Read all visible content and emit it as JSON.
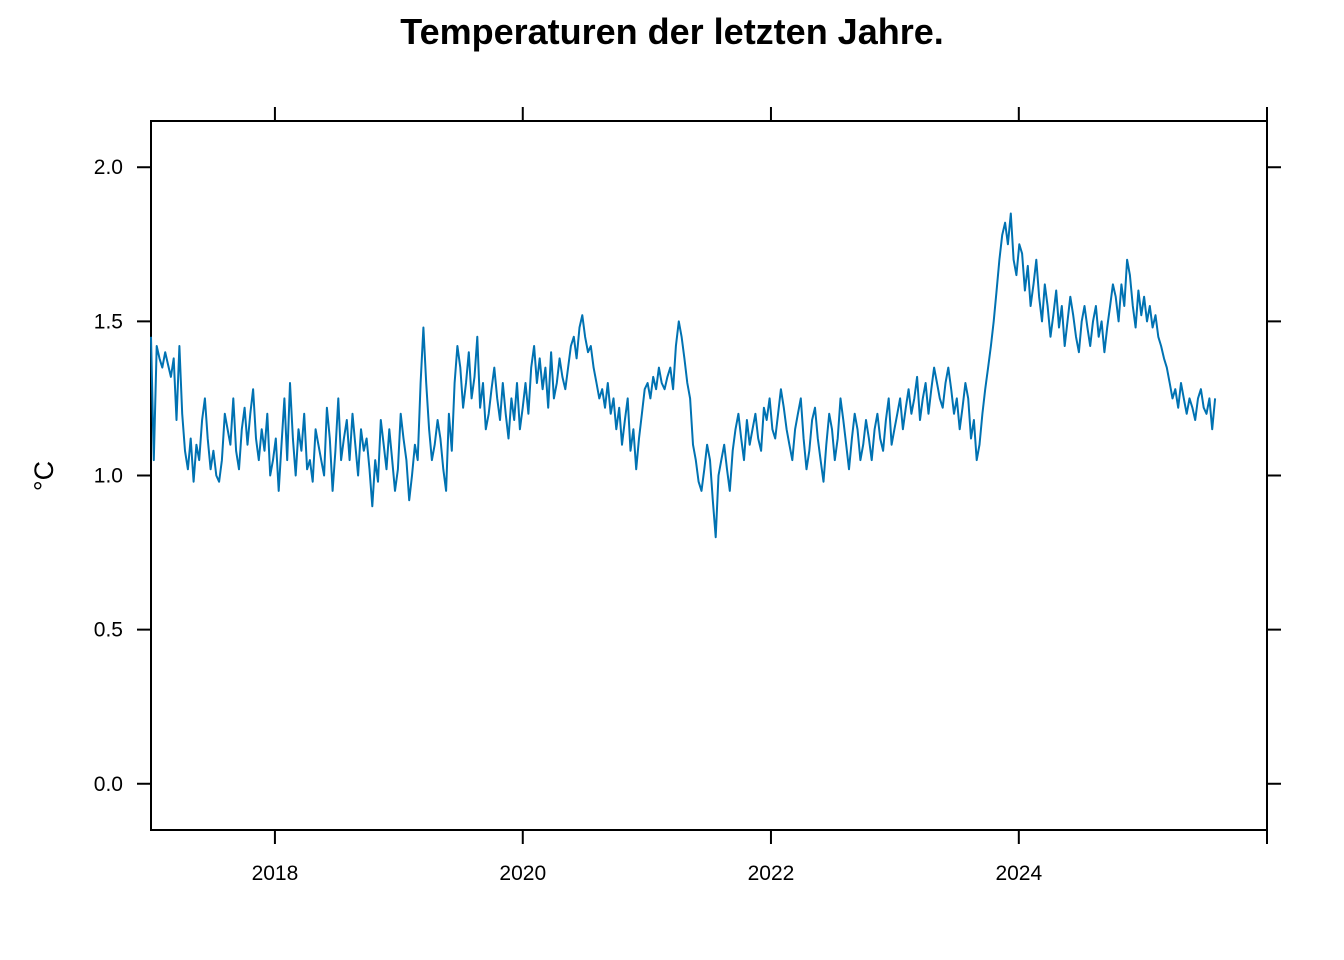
{
  "chart_data": {
    "type": "line",
    "title": "Temperaturen der letzten Jahre.",
    "xlabel": "",
    "ylabel": "°C",
    "x_start": "2017-01-01",
    "x_end": "2025-08-01",
    "xlim": [
      "2017-01-01",
      "2026-01-01"
    ],
    "ylim": [
      -0.15,
      2.15
    ],
    "x_ticks": [
      {
        "value": "2018-01-01",
        "label": "2018"
      },
      {
        "value": "2020-01-01",
        "label": "2020"
      },
      {
        "value": "2022-01-01",
        "label": "2022"
      },
      {
        "value": "2024-01-01",
        "label": "2024"
      }
    ],
    "x_top_ticks": [
      "2018-01-01",
      "2020-01-01",
      "2022-01-01",
      "2024-01-01",
      "2026-01-01"
    ],
    "y_ticks": [
      {
        "value": 0.0,
        "label": "0.0"
      },
      {
        "value": 0.5,
        "label": "0.5"
      },
      {
        "value": 1.0,
        "label": "1.0"
      },
      {
        "value": 1.5,
        "label": "1.5"
      },
      {
        "value": 2.0,
        "label": "2.0"
      }
    ],
    "grid": false,
    "series": [
      {
        "color": "#0072b2",
        "values": [
          1.45,
          1.05,
          1.42,
          1.38,
          1.35,
          1.4,
          1.36,
          1.32,
          1.38,
          1.18,
          1.42,
          1.2,
          1.08,
          1.02,
          1.12,
          0.98,
          1.1,
          1.05,
          1.18,
          1.25,
          1.12,
          1.02,
          1.08,
          1.0,
          0.98,
          1.05,
          1.2,
          1.15,
          1.1,
          1.25,
          1.08,
          1.02,
          1.15,
          1.22,
          1.1,
          1.2,
          1.28,
          1.12,
          1.05,
          1.15,
          1.08,
          1.2,
          1.0,
          1.05,
          1.12,
          0.95,
          1.1,
          1.25,
          1.05,
          1.3,
          1.12,
          1.0,
          1.15,
          1.08,
          1.2,
          1.02,
          1.05,
          0.98,
          1.15,
          1.1,
          1.05,
          1.0,
          1.22,
          1.12,
          0.95,
          1.08,
          1.25,
          1.05,
          1.12,
          1.18,
          1.05,
          1.2,
          1.1,
          1.0,
          1.15,
          1.08,
          1.12,
          1.02,
          0.9,
          1.05,
          0.98,
          1.18,
          1.1,
          1.02,
          1.15,
          1.05,
          0.95,
          1.02,
          1.2,
          1.12,
          1.05,
          0.92,
          1.0,
          1.1,
          1.05,
          1.3,
          1.48,
          1.3,
          1.15,
          1.05,
          1.1,
          1.18,
          1.12,
          1.02,
          0.95,
          1.2,
          1.08,
          1.3,
          1.42,
          1.35,
          1.22,
          1.3,
          1.4,
          1.25,
          1.32,
          1.45,
          1.22,
          1.3,
          1.15,
          1.2,
          1.28,
          1.35,
          1.25,
          1.18,
          1.3,
          1.2,
          1.12,
          1.25,
          1.18,
          1.3,
          1.15,
          1.22,
          1.3,
          1.2,
          1.35,
          1.42,
          1.3,
          1.38,
          1.28,
          1.35,
          1.22,
          1.4,
          1.25,
          1.3,
          1.38,
          1.32,
          1.28,
          1.35,
          1.42,
          1.45,
          1.38,
          1.48,
          1.52,
          1.45,
          1.4,
          1.42,
          1.35,
          1.3,
          1.25,
          1.28,
          1.22,
          1.3,
          1.2,
          1.25,
          1.15,
          1.22,
          1.1,
          1.18,
          1.25,
          1.08,
          1.15,
          1.02,
          1.12,
          1.2,
          1.28,
          1.3,
          1.25,
          1.32,
          1.28,
          1.35,
          1.3,
          1.28,
          1.32,
          1.35,
          1.28,
          1.42,
          1.5,
          1.45,
          1.38,
          1.3,
          1.25,
          1.1,
          1.05,
          0.98,
          0.95,
          1.02,
          1.1,
          1.05,
          0.92,
          0.8,
          1.0,
          1.05,
          1.1,
          1.02,
          0.95,
          1.08,
          1.15,
          1.2,
          1.12,
          1.05,
          1.18,
          1.1,
          1.15,
          1.2,
          1.12,
          1.08,
          1.22,
          1.18,
          1.25,
          1.15,
          1.12,
          1.2,
          1.28,
          1.22,
          1.15,
          1.1,
          1.05,
          1.15,
          1.2,
          1.25,
          1.12,
          1.02,
          1.08,
          1.18,
          1.22,
          1.12,
          1.05,
          0.98,
          1.1,
          1.2,
          1.15,
          1.05,
          1.12,
          1.25,
          1.18,
          1.1,
          1.02,
          1.12,
          1.2,
          1.15,
          1.05,
          1.1,
          1.18,
          1.12,
          1.05,
          1.15,
          1.2,
          1.12,
          1.08,
          1.18,
          1.25,
          1.1,
          1.15,
          1.2,
          1.25,
          1.15,
          1.22,
          1.28,
          1.2,
          1.25,
          1.32,
          1.18,
          1.25,
          1.3,
          1.2,
          1.28,
          1.35,
          1.3,
          1.25,
          1.22,
          1.3,
          1.35,
          1.28,
          1.2,
          1.25,
          1.15,
          1.22,
          1.3,
          1.25,
          1.12,
          1.18,
          1.05,
          1.1,
          1.2,
          1.28,
          1.35,
          1.42,
          1.5,
          1.6,
          1.7,
          1.78,
          1.82,
          1.75,
          1.85,
          1.7,
          1.65,
          1.75,
          1.72,
          1.6,
          1.68,
          1.55,
          1.62,
          1.7,
          1.58,
          1.5,
          1.62,
          1.55,
          1.45,
          1.52,
          1.6,
          1.48,
          1.55,
          1.42,
          1.5,
          1.58,
          1.52,
          1.45,
          1.4,
          1.5,
          1.55,
          1.48,
          1.42,
          1.5,
          1.55,
          1.45,
          1.5,
          1.4,
          1.48,
          1.55,
          1.62,
          1.58,
          1.5,
          1.62,
          1.55,
          1.7,
          1.65,
          1.55,
          1.48,
          1.6,
          1.52,
          1.58,
          1.5,
          1.55,
          1.48,
          1.52,
          1.45,
          1.42,
          1.38,
          1.35,
          1.3,
          1.25,
          1.28,
          1.22,
          1.3,
          1.25,
          1.2,
          1.25,
          1.22,
          1.18,
          1.25,
          1.28,
          1.22,
          1.2,
          1.25,
          1.15,
          1.25
        ]
      }
    ]
  }
}
